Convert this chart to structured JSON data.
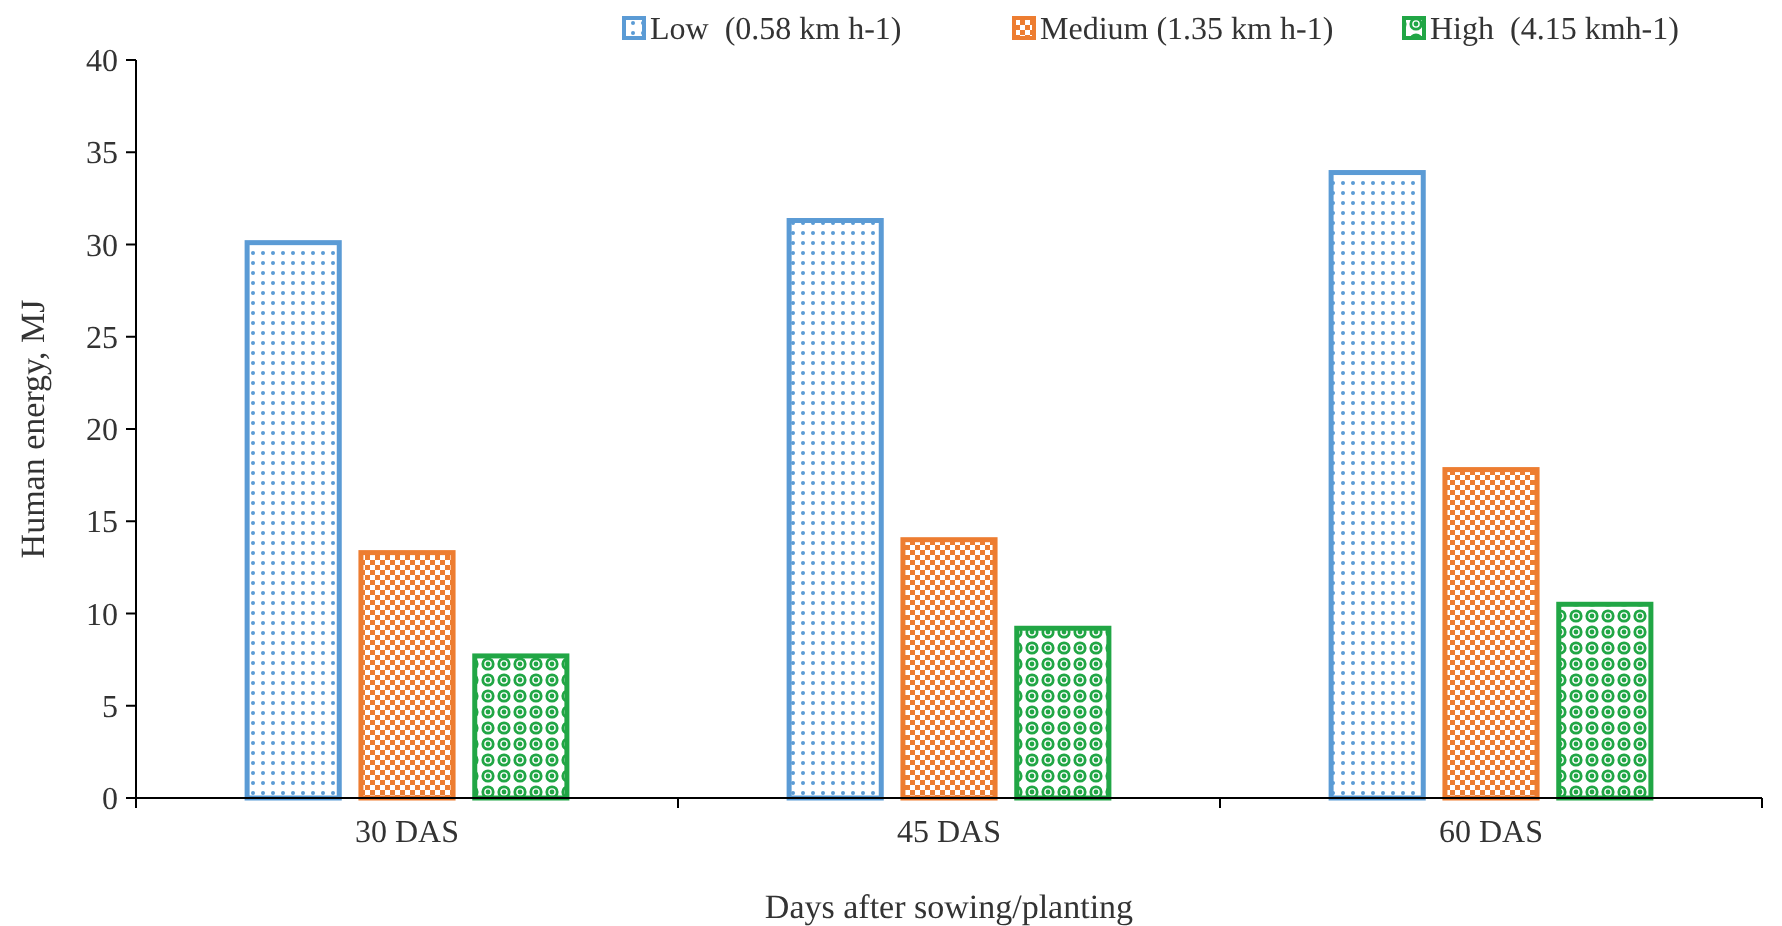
{
  "chart_data": {
    "type": "bar",
    "xlabel": "Days after sowing/planting",
    "ylabel": "Human energy, MJ",
    "categories": [
      "30 DAS",
      "45 DAS",
      "60 DAS"
    ],
    "series": [
      {
        "name": "Low  (0.58 km h-1)",
        "color": "#5b9bd5",
        "values": [
          30.1,
          31.3,
          33.9
        ]
      },
      {
        "name": "Medium (1.35 km h-1)",
        "color": "#ed7d31",
        "values": [
          13.3,
          14.0,
          17.8
        ]
      },
      {
        "name": "High  (4.15 kmh-1)",
        "color": "#21a645",
        "values": [
          7.7,
          9.2,
          10.5
        ]
      }
    ],
    "ylim": [
      0,
      40
    ],
    "yticks": [
      0,
      5,
      10,
      15,
      20,
      25,
      30,
      35,
      40
    ],
    "grid": false,
    "legend": "top"
  }
}
